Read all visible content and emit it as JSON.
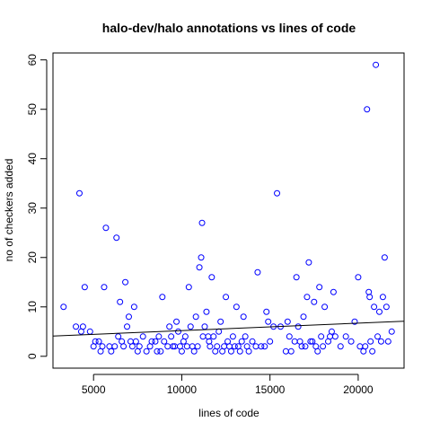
{
  "chart_data": {
    "type": "scatter",
    "title": "halo-dev/halo annotations vs lines of code",
    "xlabel": "lines of code",
    "ylabel": "no of checkers added",
    "xlim": [
      2700,
      22600
    ],
    "ylim": [
      -2.4,
      61.4
    ],
    "xticks": [
      5000,
      10000,
      15000,
      20000
    ],
    "yticks": [
      0,
      10,
      20,
      30,
      40,
      50,
      60
    ],
    "point_color": "#0000ff",
    "line_color": "#000000",
    "grid": false,
    "legend": "none",
    "trendline": {
      "x": [
        2700,
        22600
      ],
      "y": [
        4.1,
        7.1
      ]
    },
    "points": [
      [
        3300,
        10
      ],
      [
        4000,
        6
      ],
      [
        4200,
        33
      ],
      [
        4300,
        5
      ],
      [
        4400,
        6
      ],
      [
        4500,
        14
      ],
      [
        4800,
        5
      ],
      [
        5000,
        2
      ],
      [
        5100,
        3
      ],
      [
        5300,
        3
      ],
      [
        5400,
        1
      ],
      [
        5500,
        2
      ],
      [
        5600,
        14
      ],
      [
        5700,
        26
      ],
      [
        5900,
        2
      ],
      [
        6000,
        1
      ],
      [
        6200,
        2
      ],
      [
        6300,
        24
      ],
      [
        6400,
        4
      ],
      [
        6500,
        11
      ],
      [
        6600,
        3
      ],
      [
        6700,
        2
      ],
      [
        6800,
        15
      ],
      [
        6900,
        6
      ],
      [
        7000,
        8
      ],
      [
        7100,
        3
      ],
      [
        7200,
        2
      ],
      [
        7300,
        10
      ],
      [
        7400,
        3
      ],
      [
        7500,
        1
      ],
      [
        7600,
        2
      ],
      [
        7800,
        4
      ],
      [
        8000,
        1
      ],
      [
        8200,
        2
      ],
      [
        8300,
        3
      ],
      [
        8500,
        3
      ],
      [
        8600,
        1
      ],
      [
        8700,
        4
      ],
      [
        8800,
        1
      ],
      [
        8900,
        12
      ],
      [
        9000,
        3
      ],
      [
        9200,
        2
      ],
      [
        9300,
        6
      ],
      [
        9400,
        4
      ],
      [
        9500,
        2
      ],
      [
        9600,
        2
      ],
      [
        9700,
        7
      ],
      [
        9800,
        5
      ],
      [
        9900,
        2
      ],
      [
        10000,
        1
      ],
      [
        10100,
        3
      ],
      [
        10200,
        4
      ],
      [
        10300,
        2
      ],
      [
        10400,
        14
      ],
      [
        10500,
        6
      ],
      [
        10600,
        2
      ],
      [
        10700,
        1
      ],
      [
        10800,
        8
      ],
      [
        10900,
        2
      ],
      [
        11000,
        18
      ],
      [
        11100,
        20
      ],
      [
        11150,
        27
      ],
      [
        11200,
        4
      ],
      [
        11300,
        6
      ],
      [
        11400,
        9
      ],
      [
        11500,
        4
      ],
      [
        11550,
        3
      ],
      [
        11600,
        2
      ],
      [
        11700,
        16
      ],
      [
        11800,
        4
      ],
      [
        11900,
        1
      ],
      [
        12000,
        2
      ],
      [
        12100,
        5
      ],
      [
        12200,
        7
      ],
      [
        12300,
        1
      ],
      [
        12400,
        2
      ],
      [
        12500,
        12
      ],
      [
        12600,
        3
      ],
      [
        12700,
        2
      ],
      [
        12800,
        1
      ],
      [
        12900,
        4
      ],
      [
        13000,
        2
      ],
      [
        13100,
        10
      ],
      [
        13200,
        2
      ],
      [
        13300,
        1
      ],
      [
        13400,
        3
      ],
      [
        13500,
        8
      ],
      [
        13600,
        4
      ],
      [
        13700,
        2
      ],
      [
        13800,
        1
      ],
      [
        14000,
        3
      ],
      [
        14200,
        2
      ],
      [
        14300,
        17
      ],
      [
        14500,
        2
      ],
      [
        14700,
        2
      ],
      [
        14800,
        9
      ],
      [
        14900,
        7
      ],
      [
        15000,
        3
      ],
      [
        15200,
        6
      ],
      [
        15400,
        33
      ],
      [
        15600,
        6
      ],
      [
        15900,
        1
      ],
      [
        16000,
        7
      ],
      [
        16100,
        4
      ],
      [
        16200,
        1
      ],
      [
        16400,
        3
      ],
      [
        16500,
        16
      ],
      [
        16600,
        6
      ],
      [
        16700,
        3
      ],
      [
        16800,
        2
      ],
      [
        16900,
        8
      ],
      [
        17000,
        2
      ],
      [
        17100,
        12
      ],
      [
        17200,
        19
      ],
      [
        17300,
        3
      ],
      [
        17400,
        3
      ],
      [
        17500,
        11
      ],
      [
        17600,
        2
      ],
      [
        17700,
        1
      ],
      [
        17800,
        14
      ],
      [
        17900,
        4
      ],
      [
        18000,
        2
      ],
      [
        18100,
        10
      ],
      [
        18300,
        3
      ],
      [
        18400,
        4
      ],
      [
        18500,
        5
      ],
      [
        18600,
        13
      ],
      [
        18700,
        4
      ],
      [
        19000,
        2
      ],
      [
        19300,
        4
      ],
      [
        19600,
        3
      ],
      [
        19800,
        7
      ],
      [
        20000,
        16
      ],
      [
        20100,
        2
      ],
      [
        20300,
        1
      ],
      [
        20400,
        2
      ],
      [
        20500,
        50
      ],
      [
        20600,
        13
      ],
      [
        20650,
        12
      ],
      [
        20700,
        3
      ],
      [
        20800,
        1
      ],
      [
        20900,
        10
      ],
      [
        21000,
        59
      ],
      [
        21100,
        4
      ],
      [
        21200,
        9
      ],
      [
        21300,
        3
      ],
      [
        21400,
        12
      ],
      [
        21500,
        20
      ],
      [
        21600,
        10
      ],
      [
        21700,
        3
      ],
      [
        21900,
        5
      ]
    ]
  }
}
